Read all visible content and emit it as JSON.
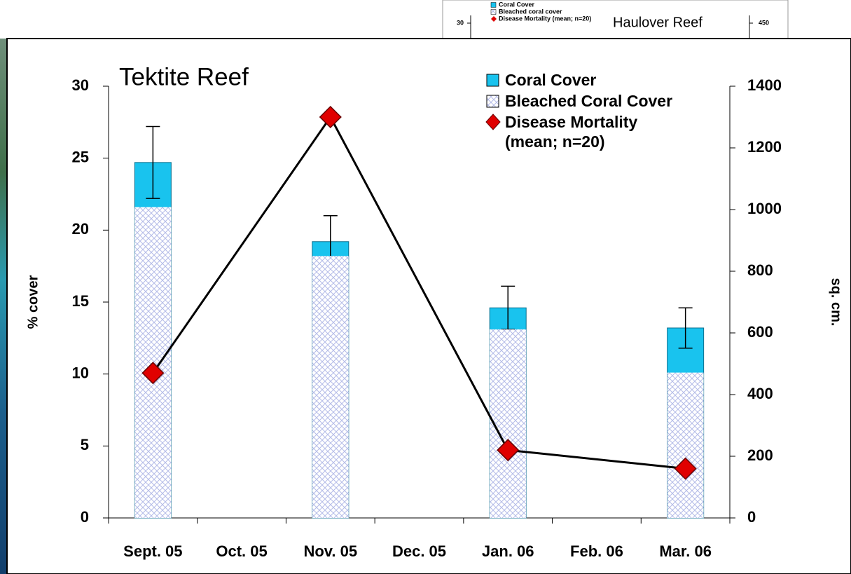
{
  "chart_data": [
    {
      "type": "bar",
      "title": "Tektite Reef",
      "xticks": [
        {
          "value": 0,
          "label": "Sept. 05"
        },
        {
          "value": 1,
          "label": "Oct. 05"
        },
        {
          "value": 2,
          "label": "Nov. 05"
        },
        {
          "value": 3,
          "label": "Dec. 05"
        },
        {
          "value": 4,
          "label": "Jan. 06"
        },
        {
          "value": 5,
          "label": "Feb. 06"
        },
        {
          "value": 6,
          "label": "Mar. 06"
        }
      ],
      "xlim": [
        -0.5,
        6.5
      ],
      "y_label": "% cover",
      "y2_label": "sq. cm.",
      "ylim": [
        0,
        30
      ],
      "yticks": [
        0,
        5,
        10,
        15,
        20,
        25,
        30
      ],
      "y2lim": [
        0,
        1400
      ],
      "y2ticks": [
        0,
        200,
        400,
        600,
        800,
        1000,
        1200,
        1400
      ],
      "series": [
        {
          "name": "Coral Cover",
          "type": "bar",
          "color": "#19c3ee",
          "x": [
            0,
            2,
            4,
            6
          ],
          "values": [
            24.7,
            19.2,
            14.6,
            13.2
          ],
          "errors": [
            2.5,
            1.8,
            1.5,
            1.4
          ]
        },
        {
          "name": "Bleached Coral Cover",
          "type": "bar",
          "color": "#b4bbe8",
          "x": [
            0,
            2,
            4,
            6
          ],
          "values": [
            21.6,
            18.2,
            13.1,
            10.1
          ]
        },
        {
          "name": "Disease Mortality (mean; n=20)",
          "type": "line",
          "axis": "y2",
          "color": "#e00000",
          "x": [
            0,
            2,
            4,
            6
          ],
          "values": [
            470,
            1300,
            220,
            160
          ]
        }
      ]
    },
    {
      "type": "bar",
      "title": "Haulover Reef",
      "ylim": [
        0,
        30
      ],
      "yticks": [
        30
      ],
      "y2lim": [
        0,
        450
      ],
      "y2ticks": [
        450
      ],
      "series": [
        {
          "name": "Coral Cover",
          "color": "#19c3ee"
        },
        {
          "name": "Bleached coral cover",
          "color": "#b4bbe8"
        },
        {
          "name": "Disease Mortality (mean; n=20)",
          "color": "#e00000"
        }
      ]
    }
  ]
}
